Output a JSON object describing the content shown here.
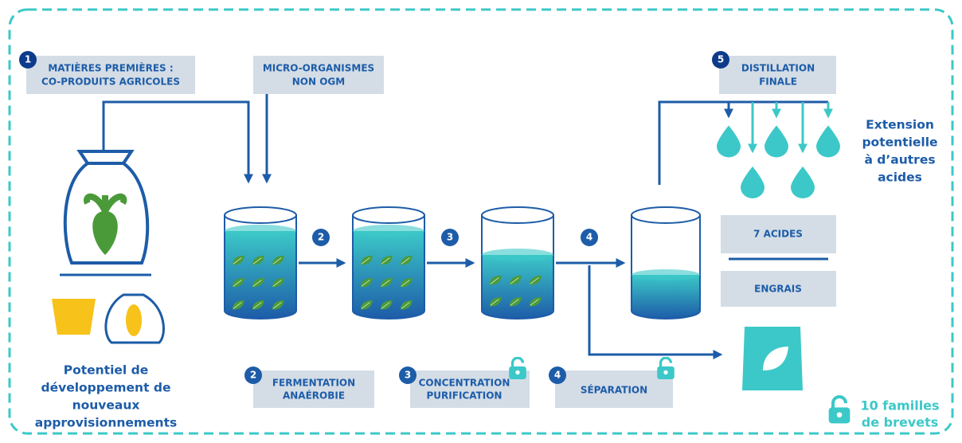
{
  "inputs": [
    {
      "number": "1",
      "lines": [
        "MATIÈRES PREMIÈRES :",
        "CO-PRODUITS AGRICOLES"
      ]
    },
    {
      "lines": [
        "MICRO-ORGANISMES",
        "NON OGM"
      ]
    }
  ],
  "flow_markers": [
    "2",
    "3",
    "4"
  ],
  "distillation": {
    "number": "5",
    "lines": [
      "DISTILLATION",
      "FINALE"
    ]
  },
  "extension": [
    "Extension",
    "potentielle",
    "à d’autres",
    "acides"
  ],
  "outputs": [
    "7 ACIDES",
    "ENGRAIS"
  ],
  "supply_note": [
    "Potentiel de",
    "développement de",
    "nouveaux",
    "approvisionnements"
  ],
  "stages": [
    {
      "number": "2",
      "lines": [
        "FERMENTATION",
        "ANAÉROBIE"
      ]
    },
    {
      "number": "3",
      "lines": [
        "CONCENTRATION",
        "PURIFICATION"
      ]
    },
    {
      "number": "4",
      "lines": [
        "SÉPARATION"
      ]
    }
  ],
  "patents": [
    "10 familles",
    "de brevets"
  ]
}
